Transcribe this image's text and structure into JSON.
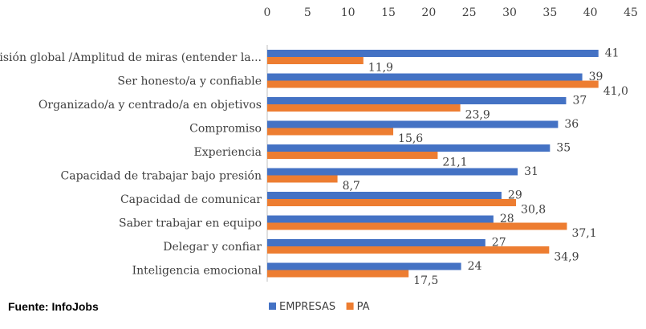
{
  "chart_data": {
    "type": "bar",
    "orientation": "horizontal",
    "categories": [
      "Visión global /Amplitud de miras (entender la...",
      "Ser honesto/a y confiable",
      "Organizado/a y centrado/a en objetivos",
      "Compromiso",
      "Experiencia",
      "Capacidad de trabajar bajo presión",
      "Capacidad de comunicar",
      "Saber trabajar en equipo",
      "Delegar y confiar",
      "Inteligencia emocional"
    ],
    "series": [
      {
        "name": "EMPRESAS",
        "color": "#4472C4",
        "values": [
          41,
          39,
          37,
          36,
          35,
          31,
          29,
          28,
          27,
          24
        ],
        "labels": [
          "41",
          "39",
          "37",
          "36",
          "35",
          "31",
          "29",
          "28",
          "27",
          "24"
        ]
      },
      {
        "name": "PA",
        "color": "#ED7D31",
        "values": [
          11.9,
          41.0,
          23.9,
          15.6,
          21.1,
          8.7,
          30.8,
          37.1,
          34.9,
          17.5
        ],
        "labels": [
          "11,9",
          "41,0",
          "23,9",
          "15,6",
          "21,1",
          "8,7",
          "30,8",
          "37,1",
          "34,9",
          "17,5"
        ]
      }
    ],
    "xlim": [
      0,
      45
    ],
    "xticks": [
      0,
      5,
      10,
      15,
      20,
      25,
      30,
      35,
      40,
      45
    ],
    "xtick_labels": [
      "0",
      "5",
      "10",
      "15",
      "20",
      "25",
      "30",
      "35",
      "40",
      "45"
    ],
    "axis_position": "top",
    "grid": false,
    "legend_position": "bottom"
  },
  "source": "Fuente: InfoJobs"
}
